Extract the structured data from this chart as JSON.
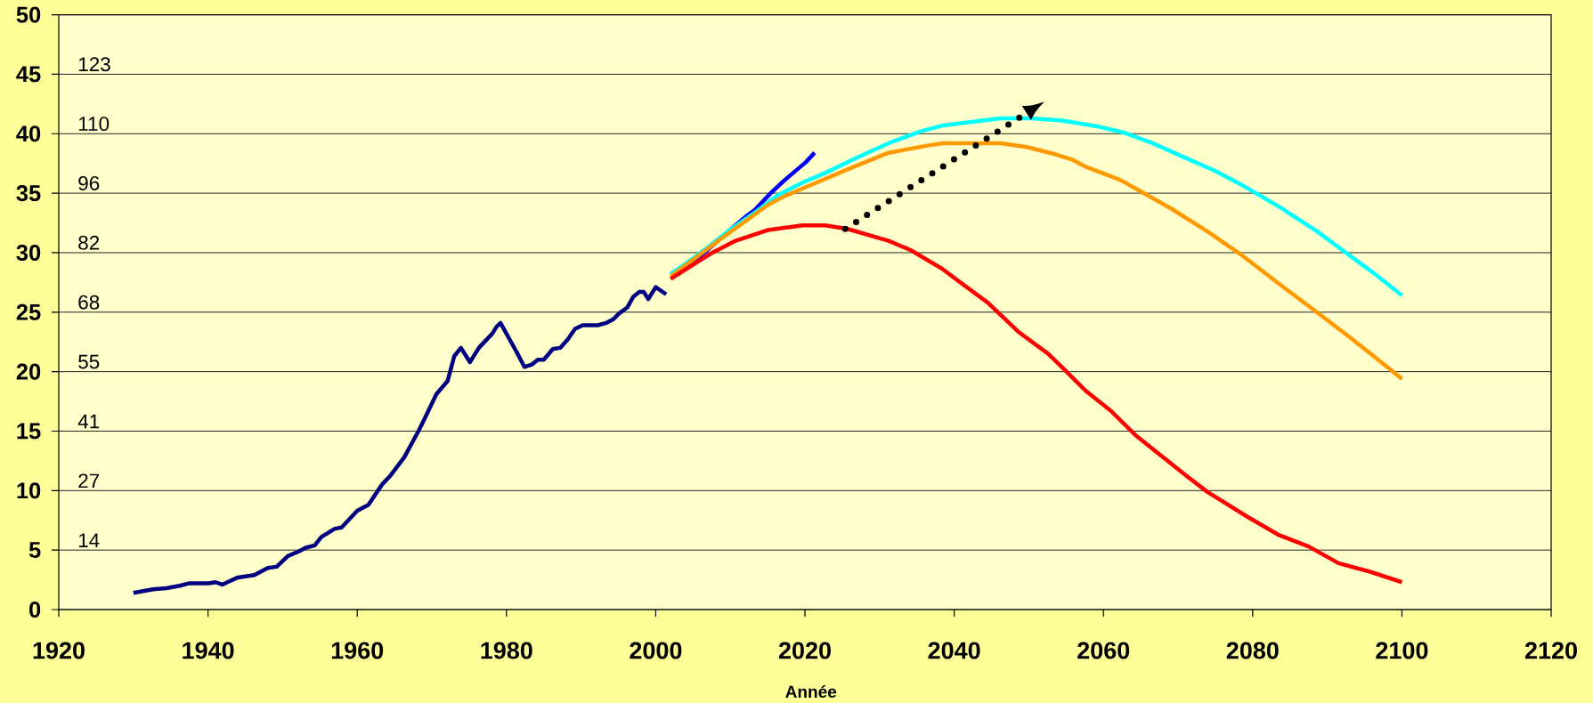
{
  "chart_data": {
    "type": "line",
    "xlabel": "Année",
    "xlim": [
      1920,
      2120
    ],
    "xticks": [
      1920,
      1940,
      1960,
      1980,
      2000,
      2020,
      2040,
      2060,
      2080,
      2100,
      2120
    ],
    "ylim": [
      0,
      50
    ],
    "yticks": [
      0,
      5,
      10,
      15,
      20,
      25,
      30,
      35,
      40,
      45,
      50
    ],
    "y2lim": [
      0,
      137
    ],
    "y2ticks": [
      {
        "value": 13.7,
        "label": "14"
      },
      {
        "value": 27.4,
        "label": "27"
      },
      {
        "value": 41.1,
        "label": "41"
      },
      {
        "value": 54.8,
        "label": "55"
      },
      {
        "value": 68.5,
        "label": "68"
      },
      {
        "value": 82.2,
        "label": "82"
      },
      {
        "value": 95.9,
        "label": "96"
      },
      {
        "value": 109.6,
        "label": "110"
      },
      {
        "value": 123.3,
        "label": "123"
      }
    ],
    "grid": "y",
    "line_style": "solid",
    "series": [
      {
        "color": "#000080",
        "x": [
          1930.0,
          1932.6,
          1934.4,
          1936.2,
          1937.4,
          1940.1,
          1941.0,
          1941.9,
          1944.0,
          1946.2,
          1947.1,
          1948.0,
          1949.2,
          1950.7,
          1952.2,
          1953.1,
          1954.3,
          1955.2,
          1957.0,
          1957.9,
          1960.0,
          1961.5,
          1963.3,
          1964.5,
          1966.3,
          1968.2,
          1969.0,
          1970.6,
          1972.1,
          1973.0,
          1973.9,
          1975.1,
          1976.3,
          1978.1,
          1978.7,
          1979.2,
          1981.4,
          1982.4,
          1983.4,
          1984.2,
          1985.0,
          1986.2,
          1987.2,
          1988.2,
          1989.2,
          1990.2,
          1992.2,
          1993.4,
          1994.3,
          1995.1,
          1996.2,
          1997.0,
          1997.8,
          1998.4,
          1999.0,
          2000.0,
          2001.4
        ],
        "values": [
          1.4,
          1.7,
          1.8,
          2.0,
          2.2,
          2.2,
          2.3,
          2.1,
          2.7,
          2.9,
          3.2,
          3.5,
          3.6,
          4.5,
          4.9,
          5.2,
          5.4,
          6.1,
          6.8,
          6.9,
          8.3,
          8.8,
          10.5,
          11.3,
          12.8,
          15.0,
          16.0,
          18.1,
          19.2,
          21.3,
          22.0,
          20.8,
          22.0,
          23.2,
          23.8,
          24.1,
          21.6,
          20.4,
          20.6,
          21.0,
          21.0,
          21.9,
          22.0,
          22.7,
          23.6,
          23.9,
          23.9,
          24.1,
          24.4,
          24.9,
          25.4,
          26.3,
          26.7,
          26.7,
          26.1,
          27.1,
          26.5
        ]
      },
      {
        "color": "#0000FF",
        "x": [
          2002.0,
          2005.8,
          2010.3,
          2012.0,
          2013.3,
          2015.4,
          2017.1,
          2018.4,
          2020.1,
          2021.3
        ],
        "values": [
          28.2,
          29.6,
          32.1,
          33.0,
          33.6,
          35.0,
          36.0,
          36.7,
          37.6,
          38.4
        ]
      },
      {
        "color": "#00FFFF",
        "x": [
          2002.0,
          2004.3,
          2006.9,
          2009.9,
          2012.9,
          2016.3,
          2019.7,
          2022.7,
          2027.0,
          2031.2,
          2035.5,
          2038.5,
          2042.3,
          2046.2,
          2050.4,
          2054.5,
          2059.3,
          2062.7,
          2066.6,
          2070.5,
          2074.9,
          2078.8,
          2083.7,
          2088.6,
          2092.5,
          2096.4,
          2100.0
        ],
        "values": [
          28.2,
          29.2,
          30.4,
          31.9,
          33.2,
          34.8,
          35.9,
          36.7,
          38.0,
          39.2,
          40.2,
          40.7,
          41.0,
          41.3,
          41.3,
          41.1,
          40.6,
          40.1,
          39.2,
          38.1,
          36.9,
          35.6,
          33.8,
          31.8,
          30.0,
          28.2,
          26.4
        ]
      },
      {
        "color": "#FF9900",
        "x": [
          2002.0,
          2008.6,
          2015.0,
          2017.1,
          2019.7,
          2025.7,
          2031.2,
          2036.4,
          2038.5,
          2046.2,
          2049.6,
          2053.4,
          2055.9,
          2057.7,
          2062.3,
          2069.1,
          2073.9,
          2078.3,
          2083.7,
          2088.6,
          2093.4,
          2096.4,
          2100.0
        ],
        "values": [
          28.0,
          31.1,
          34.0,
          34.7,
          35.4,
          37.0,
          38.4,
          39.0,
          39.2,
          39.2,
          38.9,
          38.3,
          37.8,
          37.2,
          36.1,
          33.7,
          31.8,
          29.9,
          27.3,
          25.0,
          22.7,
          21.2,
          19.4
        ]
      },
      {
        "color": "#FF0000",
        "x": [
          2002.0,
          2007.3,
          2010.7,
          2015.0,
          2019.7,
          2022.7,
          2025.7,
          2031.2,
          2034.2,
          2038.5,
          2040.6,
          2044.5,
          2048.7,
          2052.6,
          2054.9,
          2057.6,
          2061.0,
          2064.4,
          2067.8,
          2071.2,
          2073.9,
          2079.3,
          2083.4,
          2087.5,
          2091.5,
          2095.6,
          2100.0
        ],
        "values": [
          27.8,
          29.9,
          31.0,
          31.9,
          32.3,
          32.3,
          32.0,
          31.0,
          30.2,
          28.6,
          27.6,
          25.8,
          23.3,
          21.5,
          20.1,
          18.4,
          16.7,
          14.6,
          12.9,
          11.2,
          9.9,
          7.8,
          6.3,
          5.3,
          3.9,
          3.2,
          2.3
        ]
      }
    ]
  }
}
